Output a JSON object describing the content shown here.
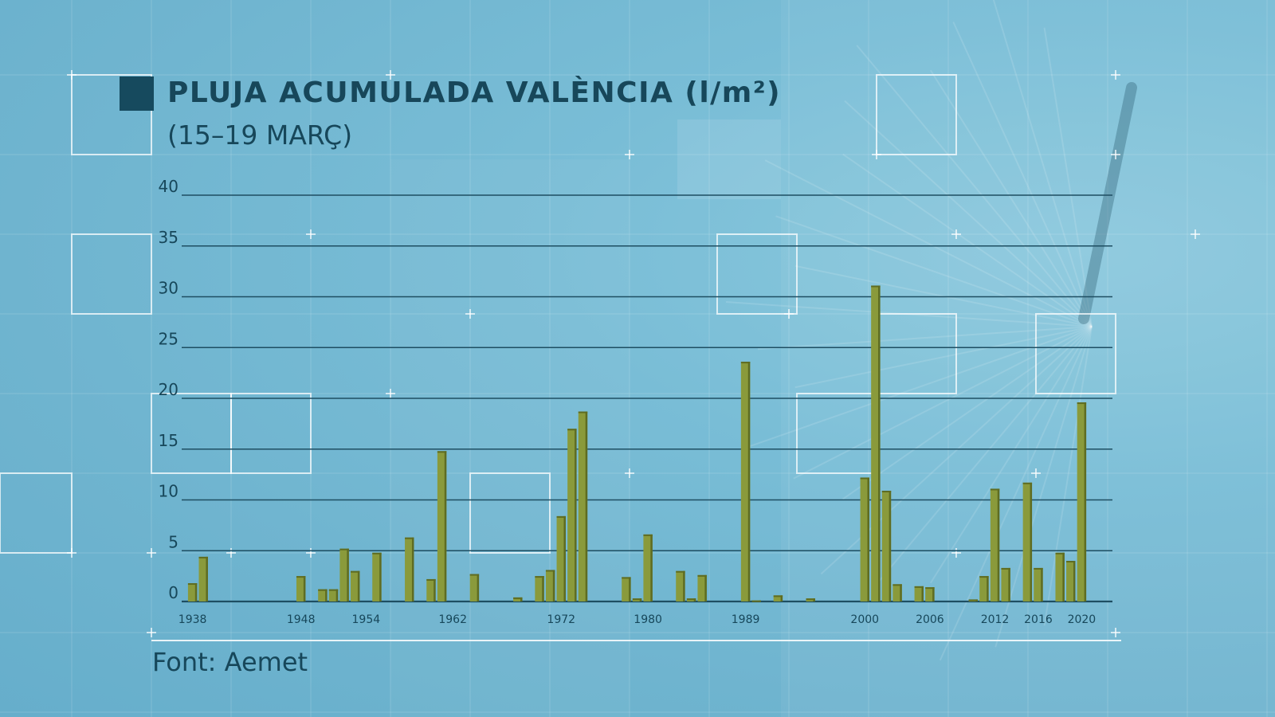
{
  "header": {
    "title": "PLUJA ACUMULADA VALÈNCIA (l/m²)",
    "subtitle": "(15–19 MARÇ)"
  },
  "footer": {
    "source": "Font: Aemet"
  },
  "colors": {
    "bar": "#8a9a3b",
    "bar_edge": "#5e6c22",
    "gridline": "#1e4e62",
    "text": "#17475a",
    "legend_square": "#164a5e"
  },
  "chart_data": {
    "type": "bar",
    "title": "PLUJA ACUMULADA VALÈNCIA (l/m²)",
    "subtitle": "(15–19 MARÇ)",
    "xlabel": "",
    "ylabel": "",
    "ylim": [
      0,
      40
    ],
    "yticks": [
      0,
      5,
      10,
      15,
      20,
      25,
      30,
      35,
      40
    ],
    "grid": true,
    "year_range": [
      1937,
      2021
    ],
    "xtick_labels": [
      1938,
      1948,
      1954,
      1962,
      1972,
      1980,
      1989,
      2000,
      2006,
      2012,
      2016,
      2020
    ],
    "series": [
      {
        "x": [
          1938,
          1939,
          1948,
          1950,
          1951,
          1952,
          1953,
          1955,
          1958,
          1960,
          1961,
          1964,
          1968,
          1970,
          1971,
          1972,
          1973,
          1974,
          1978,
          1979,
          1980,
          1983,
          1984,
          1985,
          1989,
          1990,
          1992,
          1995,
          2000,
          2001,
          2002,
          2003,
          2005,
          2006,
          2010,
          2011,
          2012,
          2013,
          2015,
          2016,
          2018,
          2019,
          2020
        ],
        "values": [
          1.8,
          4.4,
          2.5,
          1.2,
          1.2,
          5.2,
          3.0,
          4.8,
          6.3,
          2.2,
          14.8,
          2.7,
          0.4,
          2.5,
          3.1,
          8.4,
          17.0,
          18.7,
          2.4,
          0.3,
          6.6,
          3.0,
          0.3,
          2.6,
          23.6,
          0.1,
          0.6,
          0.3,
          12.2,
          31.1,
          10.9,
          1.7,
          1.5,
          1.4,
          0.2,
          2.5,
          11.1,
          3.3,
          11.7,
          3.3,
          4.8,
          4.0,
          19.6
        ]
      }
    ]
  }
}
